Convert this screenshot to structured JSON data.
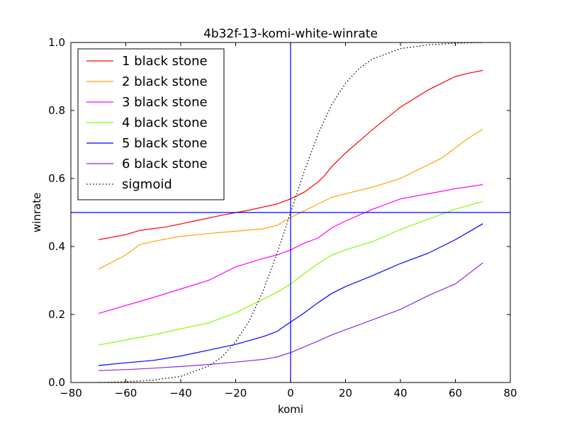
{
  "chart_data": {
    "type": "line",
    "title": "4b32f-13-komi-white-winrate",
    "xlabel": "komi",
    "ylabel": "winrate",
    "xlim": [
      -80,
      80
    ],
    "ylim": [
      0.0,
      1.0
    ],
    "xticks": [
      -80,
      -60,
      -40,
      -20,
      0,
      20,
      40,
      60,
      80
    ],
    "xtick_labels": [
      "−80",
      "−60",
      "−40",
      "−20",
      "0",
      "20",
      "40",
      "60",
      "80"
    ],
    "yticks": [
      0.0,
      0.2,
      0.4,
      0.6,
      0.8,
      1.0
    ],
    "ytick_labels": [
      "0.0",
      "0.2",
      "0.4",
      "0.6",
      "0.8",
      "1.0"
    ],
    "grid": false,
    "legend_position": "top-left",
    "reference_lines": {
      "vertical_x": 0,
      "horizontal_y": 0.5,
      "color": "#0000ff"
    },
    "series": [
      {
        "name": "1 black stone",
        "color": "#ff0000",
        "style": "solid",
        "x": [
          -70,
          -60,
          -55,
          -45,
          -35,
          -25,
          -15,
          -5,
          0,
          5,
          10,
          12,
          15,
          20,
          25,
          30,
          40,
          50,
          60,
          65,
          70
        ],
        "y": [
          0.42,
          0.435,
          0.447,
          0.458,
          0.475,
          0.492,
          0.507,
          0.525,
          0.54,
          0.56,
          0.59,
          0.605,
          0.635,
          0.675,
          0.71,
          0.745,
          0.81,
          0.86,
          0.9,
          0.91,
          0.918
        ]
      },
      {
        "name": "2 black stone",
        "color": "#ffa500",
        "style": "solid",
        "x": [
          -70,
          -60,
          -55,
          -50,
          -40,
          -30,
          -20,
          -10,
          -5,
          0,
          5,
          10,
          15,
          20,
          30,
          40,
          50,
          55,
          60,
          65,
          70
        ],
        "y": [
          0.333,
          0.375,
          0.405,
          0.415,
          0.43,
          0.438,
          0.445,
          0.452,
          0.462,
          0.485,
          0.505,
          0.525,
          0.545,
          0.555,
          0.575,
          0.6,
          0.64,
          0.66,
          0.69,
          0.72,
          0.745
        ]
      },
      {
        "name": "3 black stone",
        "color": "#ff00ff",
        "style": "solid",
        "x": [
          -70,
          -50,
          -40,
          -30,
          -20,
          -10,
          -5,
          0,
          5,
          10,
          15,
          20,
          30,
          40,
          50,
          60,
          70
        ],
        "y": [
          0.203,
          0.25,
          0.275,
          0.3,
          0.34,
          0.365,
          0.375,
          0.39,
          0.41,
          0.425,
          0.455,
          0.475,
          0.51,
          0.54,
          0.555,
          0.57,
          0.582
        ]
      },
      {
        "name": "4 black stone",
        "color": "#80ff00",
        "style": "solid",
        "x": [
          -70,
          -60,
          -50,
          -40,
          -30,
          -20,
          -10,
          -5,
          0,
          5,
          10,
          15,
          20,
          30,
          40,
          50,
          60,
          70
        ],
        "y": [
          0.11,
          0.125,
          0.14,
          0.158,
          0.175,
          0.205,
          0.245,
          0.265,
          0.29,
          0.32,
          0.35,
          0.375,
          0.39,
          0.415,
          0.45,
          0.48,
          0.51,
          0.532
        ]
      },
      {
        "name": "5 black stone",
        "color": "#0000ff",
        "style": "solid",
        "x": [
          -70,
          -60,
          -50,
          -40,
          -30,
          -20,
          -10,
          -5,
          0,
          5,
          10,
          15,
          20,
          30,
          40,
          50,
          60,
          70
        ],
        "y": [
          0.05,
          0.058,
          0.065,
          0.078,
          0.095,
          0.112,
          0.135,
          0.15,
          0.178,
          0.205,
          0.235,
          0.262,
          0.282,
          0.315,
          0.35,
          0.38,
          0.42,
          0.467
        ]
      },
      {
        "name": "6 black stone",
        "color": "#8a2be2",
        "style": "solid",
        "x": [
          -70,
          -60,
          -50,
          -40,
          -30,
          -20,
          -10,
          -5,
          0,
          5,
          10,
          15,
          20,
          30,
          40,
          50,
          60,
          70
        ],
        "y": [
          0.035,
          0.038,
          0.042,
          0.047,
          0.053,
          0.06,
          0.068,
          0.075,
          0.088,
          0.105,
          0.122,
          0.14,
          0.155,
          0.185,
          0.215,
          0.255,
          0.29,
          0.352
        ]
      },
      {
        "name": "sigmoid",
        "color": "#000000",
        "style": "dotted",
        "x": [
          -70,
          -60,
          -50,
          -40,
          -30,
          -25,
          -20,
          -15,
          -10,
          -5,
          0,
          5,
          10,
          15,
          20,
          25,
          30,
          40,
          50,
          60,
          70
        ],
        "y": [
          0.0,
          0.002,
          0.007,
          0.018,
          0.048,
          0.075,
          0.12,
          0.182,
          0.269,
          0.378,
          0.5,
          0.622,
          0.731,
          0.818,
          0.88,
          0.924,
          0.952,
          0.982,
          0.993,
          0.998,
          1.0
        ]
      }
    ]
  }
}
